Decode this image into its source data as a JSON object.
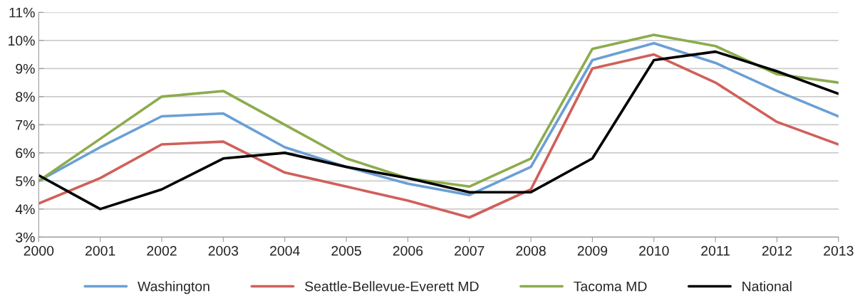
{
  "chart_data": {
    "type": "line",
    "categories": [
      "2000",
      "2001",
      "2002",
      "2003",
      "2004",
      "2005",
      "2006",
      "2007",
      "2008",
      "2009",
      "2010",
      "2011",
      "2012",
      "2013"
    ],
    "series": [
      {
        "name": "Washington",
        "color": "#6a9fd4",
        "values": [
          5.0,
          6.2,
          7.3,
          7.4,
          6.2,
          5.5,
          4.9,
          4.5,
          5.5,
          9.3,
          9.9,
          9.2,
          8.2,
          7.3
        ]
      },
      {
        "name": "Seattle-Bellevue-Everett MD",
        "color": "#d0605a",
        "values": [
          4.2,
          5.1,
          6.3,
          6.4,
          5.3,
          4.8,
          4.3,
          3.7,
          4.7,
          9.0,
          9.5,
          8.5,
          7.1,
          6.3
        ]
      },
      {
        "name": "Tacoma MD",
        "color": "#8cac4c",
        "values": [
          5.0,
          6.5,
          8.0,
          8.2,
          7.0,
          5.8,
          5.1,
          4.8,
          5.8,
          9.7,
          10.2,
          9.8,
          8.8,
          8.5
        ]
      },
      {
        "name": "National",
        "color": "#000000",
        "values": [
          5.2,
          4.0,
          4.7,
          5.8,
          6.0,
          5.5,
          5.1,
          4.6,
          4.6,
          5.8,
          9.3,
          9.6,
          8.9,
          8.1
        ]
      }
    ],
    "ylim": [
      3,
      11
    ],
    "yticks": [
      {
        "value": 3,
        "label": "3%"
      },
      {
        "value": 4,
        "label": "4%"
      },
      {
        "value": 5,
        "label": "5%"
      },
      {
        "value": 6,
        "label": "6%"
      },
      {
        "value": 7,
        "label": "7%"
      },
      {
        "value": 8,
        "label": "8%"
      },
      {
        "value": 9,
        "label": "9%"
      },
      {
        "value": 10,
        "label": "10%"
      },
      {
        "value": 11,
        "label": "11%"
      }
    ],
    "grid": "y",
    "legend": "bottom",
    "marker": "none",
    "line_style": "solid"
  }
}
